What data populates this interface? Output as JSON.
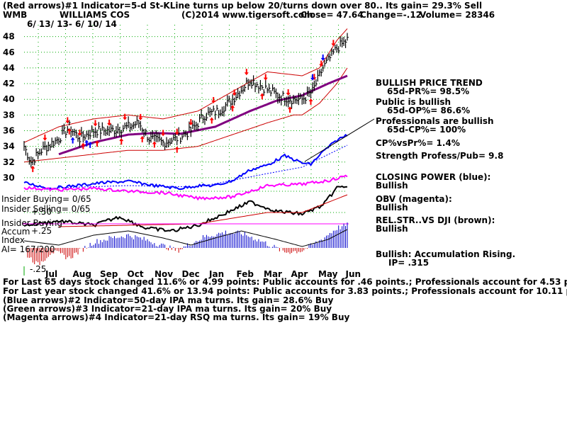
{
  "header": {
    "title_line": "(Red arrows)#1 Indicator=5-d St-KLine turns up below 20/turns down over 80.. Its gain= 29.3% Sell",
    "ticker": "WMB",
    "company": "WILLIAMS COS",
    "copyright": "(C)2014 www.tigersoft.com",
    "close": "Close=  47.64",
    "change": "Change=-.12",
    "volume": "Volume= 28346",
    "date_range": "6/ 13/ 13-  6/ 10/ 14"
  },
  "left_labels": {
    "insider_buying_count": "Insider Buying= 0/65",
    "insider_selling_count": "Insider Selling= 0/65",
    "plus50": "+.50",
    "insider_buying": "Insider Buying",
    "accum": "Accum",
    "plus25": "+.25",
    "index": "Index",
    "ai": "AI= 167/200",
    "minus25": "-.25"
  },
  "right_panel": {
    "bullish_trend": "BULLISH PRICE TREND",
    "pr": "65d-PR%= 98.5%",
    "public_bullish": "Public is bullish",
    "op": "65d-OP%= 86.6%",
    "pros_bullish": "Professionals are bullish",
    "cp": "65d-CP%= 100%",
    "cpvspr": "CP%vsPr%=  1.4%",
    "strength": "Strength Profess/Pub= 9.8",
    "closing_power": "CLOSING POWER (blue):",
    "closing_power_state": "Bullish",
    "obv": "OBV (magenta):",
    "obv_state": "Bullish",
    "relstr": "REL.STR..VS DJI (brown):",
    "relstr_state": "Bullish",
    "accum_rising": "Bullish: Accumulation Rising.",
    "ip": "IP=  .315"
  },
  "footer": {
    "line1": "For Last 65 days stock changed  11.6% or  4.99 points:  Public accounts for  .46 points.;  Professionals account for  4.53 points.",
    "line2": "For Last year stock changed  41.6% or  13.94 points:  Public accounts for  3.83 points.;  Professionals account for  10.11 points.",
    "line3": "(Blue arrows)#2 Indicator=50-day IPA ma turns. Its gain= 28.6% Buy",
    "line4": "(Green arrows)#3 Indicator=21-day IPA ma turns. Its gain= 20% Buy",
    "line5": "(Magenta arrows)#4 Indicator=21-day RSQ ma turns. Its gain= 19% Buy"
  },
  "colors": {
    "price": "#000000",
    "band": "#cc0000",
    "ma": "#800080",
    "closing_power": "#0000ff",
    "obv": "#ff00ff",
    "relstr": "#000000",
    "accum_pos": "#0000cc",
    "accum_neg": "#cc0000",
    "grid": "#00aa00",
    "arrow_red": "#ff0000",
    "arrow_blue": "#0000ff"
  },
  "chart_data": {
    "type": "line",
    "y_ticks": [
      30,
      32,
      34,
      36,
      38,
      40,
      42,
      44,
      46,
      48
    ],
    "ylim": [
      29,
      49.5
    ],
    "months": [
      "Jul",
      "Aug",
      "Sep",
      "Oct",
      "Nov",
      "Dec",
      "Jan",
      "Feb",
      "Mar",
      "Apr",
      "May",
      "Jun"
    ],
    "price_keypoints": [
      [
        0,
        34.0
      ],
      [
        4,
        32.0
      ],
      [
        10,
        33.5
      ],
      [
        20,
        35.0
      ],
      [
        26,
        36.5
      ],
      [
        32,
        35.0
      ],
      [
        40,
        36.0
      ],
      [
        50,
        36.0
      ],
      [
        60,
        36.5
      ],
      [
        66,
        37.0
      ],
      [
        72,
        35.0
      ],
      [
        80,
        34.5
      ],
      [
        88,
        35.0
      ],
      [
        96,
        36.0
      ],
      [
        104,
        38.0
      ],
      [
        112,
        38.5
      ],
      [
        120,
        40.0
      ],
      [
        130,
        42.5
      ],
      [
        138,
        41.5
      ],
      [
        146,
        40.5
      ],
      [
        154,
        40.0
      ],
      [
        160,
        40.0
      ],
      [
        166,
        41.0
      ],
      [
        172,
        44.0
      ],
      [
        180,
        46.5
      ],
      [
        186,
        47.6
      ]
    ],
    "ma_keypoints": [
      [
        20,
        33.0
      ],
      [
        40,
        34.5
      ],
      [
        60,
        35.5
      ],
      [
        75,
        35.7
      ],
      [
        90,
        35.6
      ],
      [
        110,
        36.5
      ],
      [
        130,
        38.5
      ],
      [
        145,
        39.8
      ],
      [
        160,
        40.5
      ],
      [
        175,
        42.0
      ],
      [
        186,
        43.0
      ]
    ],
    "upper_band_keypoints": [
      [
        0,
        34.5
      ],
      [
        20,
        36.5
      ],
      [
        40,
        37.5
      ],
      [
        60,
        38.0
      ],
      [
        80,
        37.5
      ],
      [
        100,
        38.5
      ],
      [
        120,
        41.0
      ],
      [
        140,
        43.5
      ],
      [
        160,
        43.0
      ],
      [
        170,
        44.0
      ],
      [
        180,
        47.5
      ],
      [
        186,
        49.0
      ]
    ],
    "lower_band_keypoints": [
      [
        0,
        32.0
      ],
      [
        20,
        32.5
      ],
      [
        40,
        33.0
      ],
      [
        60,
        33.5
      ],
      [
        80,
        33.5
      ],
      [
        100,
        34.0
      ],
      [
        120,
        35.5
      ],
      [
        140,
        37.0
      ],
      [
        155,
        38.0
      ],
      [
        160,
        38.0
      ],
      [
        170,
        39.5
      ],
      [
        180,
        42.0
      ],
      [
        186,
        44.0
      ]
    ],
    "sell_arrow_indices": [
      12,
      25,
      32,
      41,
      49,
      58,
      67,
      80,
      88,
      96,
      109,
      121,
      128,
      139,
      152,
      167,
      171,
      178
    ],
    "buy_arrow_indices": [
      5,
      26,
      34,
      42,
      56,
      68,
      75,
      88,
      108,
      120,
      137,
      153,
      165
    ],
    "blue_arrow_indices": [
      28,
      36,
      38,
      166,
      172
    ]
  }
}
